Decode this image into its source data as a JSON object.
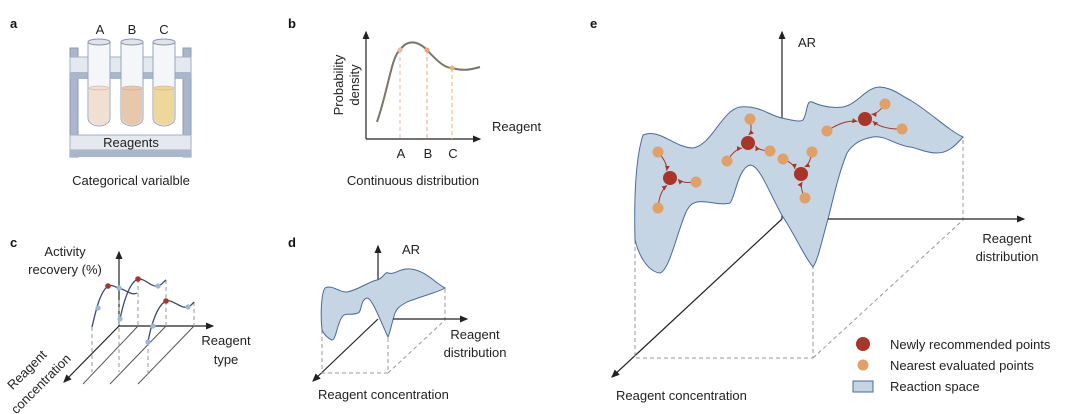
{
  "panel_a": {
    "label": "a",
    "tubes": [
      "A",
      "B",
      "C"
    ],
    "rack_label": "Reagents",
    "caption": "Categorical varialble",
    "tube_colors": [
      "#f1dfd2",
      "#e7c8ad",
      "#eed79b"
    ]
  },
  "panel_b": {
    "label": "b",
    "ylabel_1": "Probability",
    "ylabel_2": "density",
    "xlabel": "Reagent",
    "ticks": [
      "A",
      "B",
      "C"
    ],
    "caption": "Continuous distribution"
  },
  "panel_c": {
    "label": "c",
    "ylabel_1": "Activity",
    "ylabel_2": "recovery (%)",
    "xlabel_1": "Reagent",
    "xlabel_2": "type",
    "zlabel_1": "Reagent",
    "zlabel_2": "concentration"
  },
  "panel_d": {
    "label": "d",
    "ylabel": "AR",
    "xlabel_1": "Reagent",
    "xlabel_2": "distribution",
    "zlabel": "Reagent concentration"
  },
  "panel_e": {
    "label": "e",
    "ylabel": "AR",
    "xlabel_1": "Reagent",
    "xlabel_2": "distribution",
    "zlabel": "Reagent concentration",
    "legend": [
      {
        "label": "Newly recommended points"
      },
      {
        "label": "Nearest evaluated points"
      },
      {
        "label": "Reaction space"
      }
    ]
  },
  "colors": {
    "new_point": "#a8352a",
    "evaluated_point": "#e0a06a",
    "surface": "#c5d5e4",
    "surface_edge": "#4a6a9a"
  }
}
